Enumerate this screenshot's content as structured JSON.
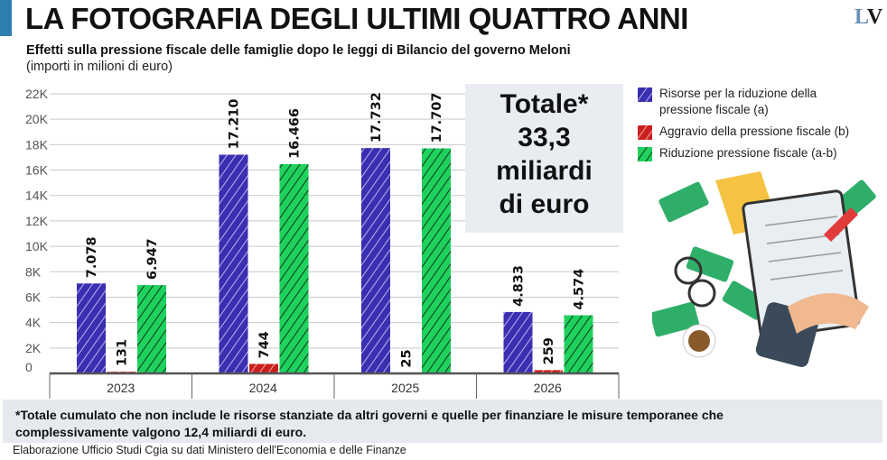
{
  "header": {
    "title": "LA FOTOGRAFIA DEGLI ULTIMI QUATTRO ANNI",
    "logo": "LV",
    "subtitle": "Effetti sulla pressione fiscale delle famiglie dopo le leggi di Bilancio del governo Meloni",
    "units": "(importi in milioni di euro)"
  },
  "total_box": {
    "line1": "Totale*",
    "line2": "33,3",
    "line3": "miliardi",
    "line4": "di euro"
  },
  "note": {
    "line1": "*Totale cumulato che non include le risorse stanziate da altri governi e quelle per finanziare le misure temporanee che",
    "line2": "complessivamente valgono 12,4 miliardi di euro."
  },
  "source": "Elaborazione Ufficio Studi Cgia su dati Ministero dell'Economia e delle Finanze",
  "chart_data": {
    "type": "bar",
    "categories": [
      "2023",
      "2024",
      "2025",
      "2026"
    ],
    "ylim": [
      0,
      22000
    ],
    "yticks": [
      0,
      2000,
      4000,
      6000,
      8000,
      10000,
      12000,
      14000,
      16000,
      18000,
      20000,
      22000
    ],
    "ytick_labels": [
      "0",
      "2K",
      "4K",
      "6K",
      "8K",
      "10K",
      "12K",
      "14K",
      "16K",
      "18K",
      "20K",
      "22K"
    ],
    "grid": true,
    "legend_position": "right",
    "series": [
      {
        "name": "Risorse per la riduzione della pressione fiscale (a)",
        "color": "#3a2fb0",
        "values": [
          7078,
          17210,
          17732,
          4833
        ],
        "labels": [
          "7.078",
          "17.210",
          "17.732",
          "4.833"
        ]
      },
      {
        "name": "Aggravio della pressione fiscale (b)",
        "color": "#c8201e",
        "values": [
          131,
          744,
          25,
          259
        ],
        "labels": [
          "131",
          "744",
          "25",
          "259"
        ]
      },
      {
        "name": "Riduzione pressione fiscale (a-b)",
        "color": "#1fd15e",
        "values": [
          6947,
          16466,
          17707,
          4574
        ],
        "labels": [
          "6.947",
          "16.466",
          "17.707",
          "4.574"
        ]
      }
    ]
  }
}
